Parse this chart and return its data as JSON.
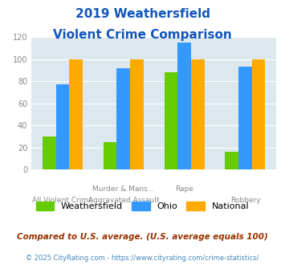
{
  "title_line1": "2019 Weathersfield",
  "title_line2": "Violent Crime Comparison",
  "weathersfield": [
    30,
    25,
    88,
    16
  ],
  "ohio": [
    77,
    92,
    115,
    93
  ],
  "national": [
    100,
    100,
    100,
    100
  ],
  "color_weathersfield": "#66cc00",
  "color_ohio": "#3399ff",
  "color_national": "#ffaa00",
  "ylim": [
    0,
    120
  ],
  "yticks": [
    0,
    20,
    40,
    60,
    80,
    100,
    120
  ],
  "legend_labels": [
    "Weathersfield",
    "Ohio",
    "National"
  ],
  "footnote1": "Compared to U.S. average. (U.S. average equals 100)",
  "footnote2": "© 2025 CityRating.com - https://www.cityrating.com/crime-statistics/",
  "bg_color": "#dde8ee",
  "title_color": "#1155bb",
  "footnote1_color": "#993300",
  "footnote2_color": "#4488bb"
}
